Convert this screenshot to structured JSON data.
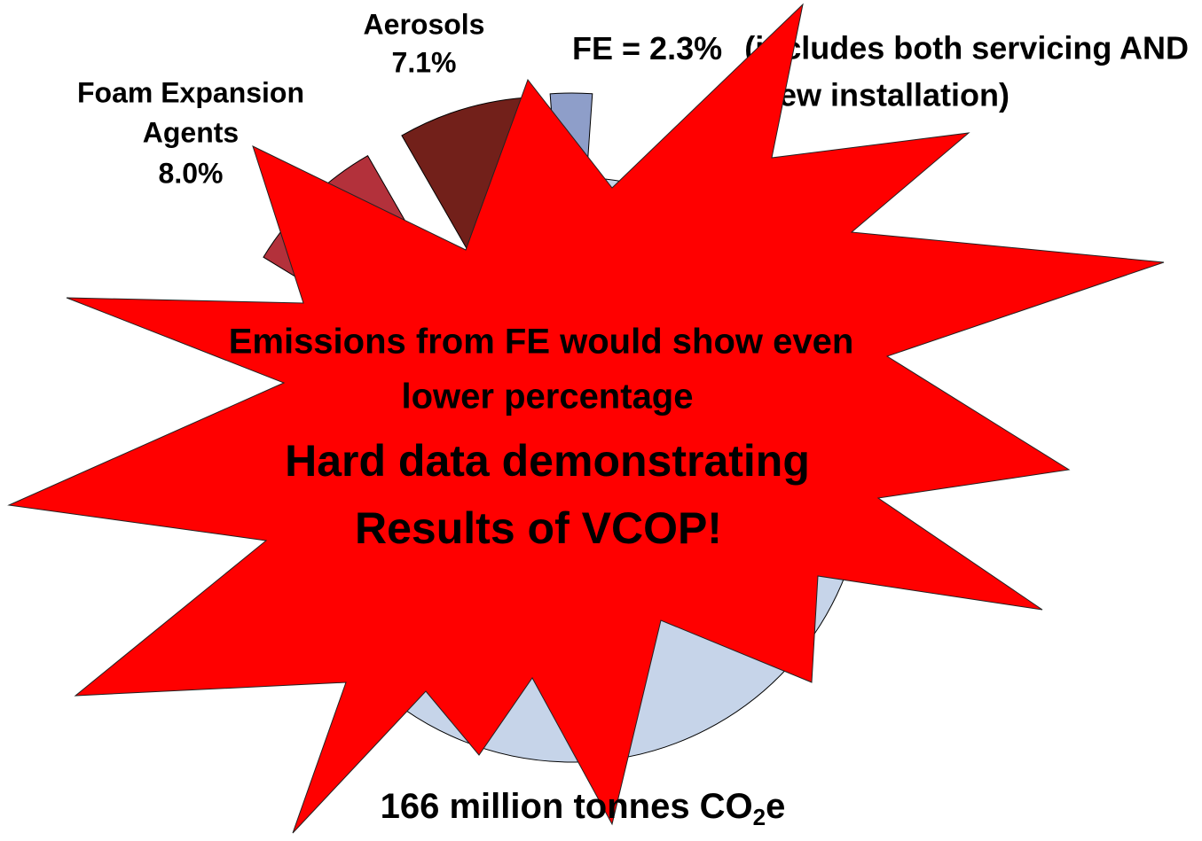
{
  "chart_data": {
    "type": "pie",
    "categories": [
      "FE",
      "Aerosols",
      "Foam Expansion Agents",
      null
    ],
    "values": [
      2.3,
      7.1,
      8.0,
      82.6
    ],
    "value_labels": [
      "= 2.3%",
      "7.1%",
      "8.0%",
      null
    ],
    "colors": [
      "#8e9ec9",
      "#72201a",
      "#b3313b",
      "#c6d4e9"
    ],
    "explode": [
      true,
      true,
      true,
      false
    ],
    "fe_note": "(includes both servicing AND new installation)",
    "total_label": [
      "166 million tonnes CO",
      "2",
      "e"
    ],
    "callout": [
      "Emissions from FE would show even",
      "lower percentage",
      "Hard data demonstrating",
      "Results of VCOP!"
    ]
  }
}
